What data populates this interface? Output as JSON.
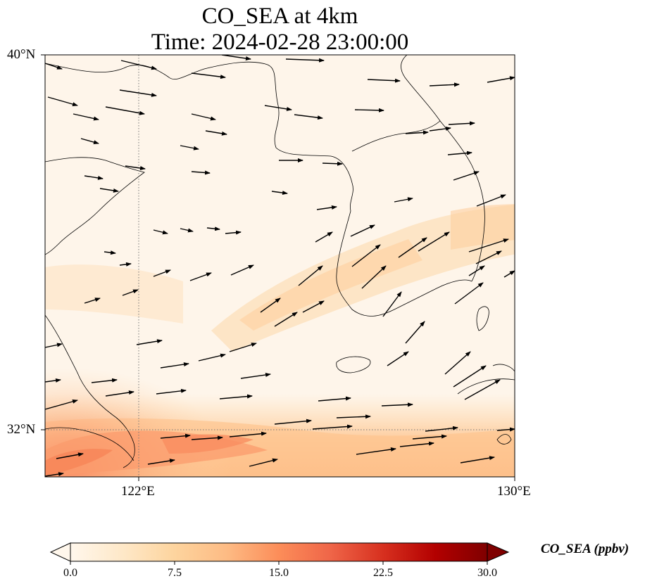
{
  "title": {
    "line1": "CO_SEA at 4km",
    "line2": "Time: 2024-02-28 23:00:00"
  },
  "axes": {
    "lat_ticks": [
      "40°N",
      "32°N"
    ],
    "lon_ticks": [
      "122°E",
      "130°E"
    ],
    "extent": {
      "lon": [
        120,
        130
      ],
      "lat": [
        31,
        40
      ]
    },
    "gridlines": "dotted"
  },
  "colorbar": {
    "label": "CO_SEA (ppbv)",
    "ticks": [
      "0.0",
      "7.5",
      "15.0",
      "22.5",
      "30.0"
    ],
    "range": [
      0,
      30
    ],
    "colormap": "OrRd",
    "extend": "both",
    "colors": [
      "#fff7ec",
      "#fee8c8",
      "#fdd49e",
      "#fdbb84",
      "#fc8d59",
      "#ef6548",
      "#d7301f",
      "#b30000",
      "#7f0000"
    ]
  },
  "colors": {
    "coast": "#000000",
    "arrow": "#000000"
  },
  "chart_data": {
    "type": "heatmap",
    "variable": "CO_SEA",
    "units": "ppbv",
    "field_summary": [
      {
        "region": "southwest corner near 31.5°N 120-125°E",
        "value": 14
      },
      {
        "region": "southern band 31-32°N",
        "value": 9
      },
      {
        "region": "band from 33°N 124°E to 36°N 130°E",
        "value": 5
      },
      {
        "region": "northern Yellow Sea and north China",
        "value": 1
      }
    ],
    "wind_vectors": {
      "direction": "mostly westerly to east-northeast, stronger northeastward flow over Korea"
    }
  }
}
